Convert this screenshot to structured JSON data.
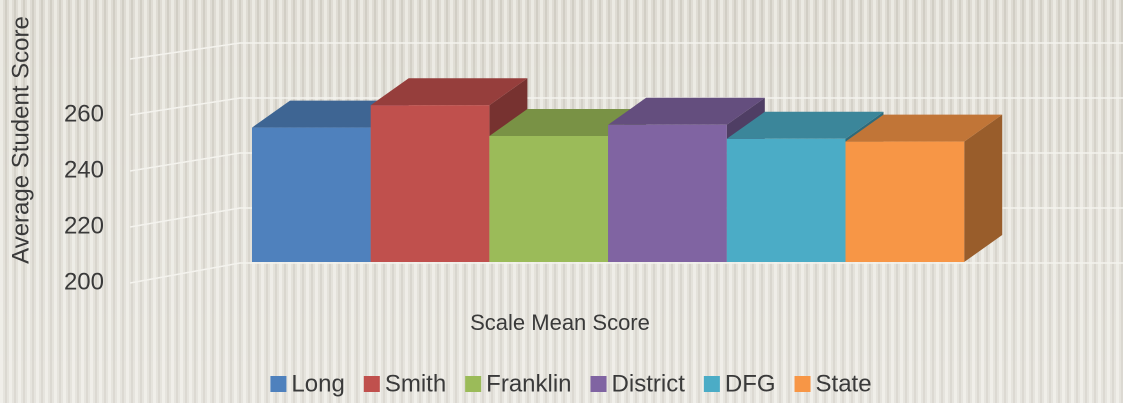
{
  "chart_data": {
    "type": "bar3d",
    "ylabel": "Average Student Score",
    "categories": [
      "Scale Mean Score"
    ],
    "series": [
      {
        "name": "Long",
        "color": "#4f81bd",
        "values": [
          248
        ]
      },
      {
        "name": "Smith",
        "color": "#c0504d",
        "values": [
          256
        ]
      },
      {
        "name": "Franklin",
        "color": "#9bbb59",
        "values": [
          245
        ]
      },
      {
        "name": "District",
        "color": "#8064a2",
        "values": [
          249
        ]
      },
      {
        "name": "DFG",
        "color": "#4bacc6",
        "values": [
          244
        ]
      },
      {
        "name": "State",
        "color": "#f79646",
        "values": [
          243
        ]
      }
    ],
    "ylim": [
      200,
      280
    ],
    "yticks": [
      200,
      220,
      240,
      260
    ],
    "grid": true,
    "legend": "bottom"
  }
}
